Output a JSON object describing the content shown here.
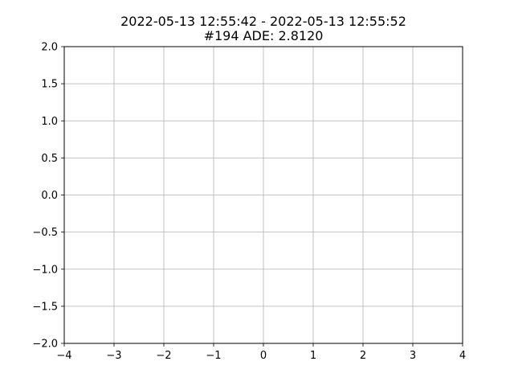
{
  "chart_data": {
    "type": "line",
    "title": "2022-05-13 12:55:42 - 2022-05-13 12:55:52",
    "subtitle": "#194 ADE: 2.8120",
    "xlabel": "",
    "ylabel": "",
    "xlim": [
      -4,
      4
    ],
    "ylim": [
      -2,
      2
    ],
    "x_ticks": [
      -4,
      -3,
      -2,
      -1,
      0,
      1,
      2,
      3,
      4
    ],
    "x_tick_labels": [
      "−4",
      "−3",
      "−2",
      "−1",
      "0",
      "1",
      "2",
      "3",
      "4"
    ],
    "y_ticks": [
      -2.0,
      -1.5,
      -1.0,
      -0.5,
      0.0,
      0.5,
      1.0,
      1.5,
      2.0
    ],
    "y_tick_labels": [
      "−2.0",
      "−1.5",
      "−1.0",
      "−0.5",
      "0.0",
      "0.5",
      "1.0",
      "1.5",
      "2.0"
    ],
    "grid": true,
    "series": []
  },
  "colors": {
    "grid": "#b0b0b0",
    "axes": "#000000",
    "background": "#ffffff"
  }
}
